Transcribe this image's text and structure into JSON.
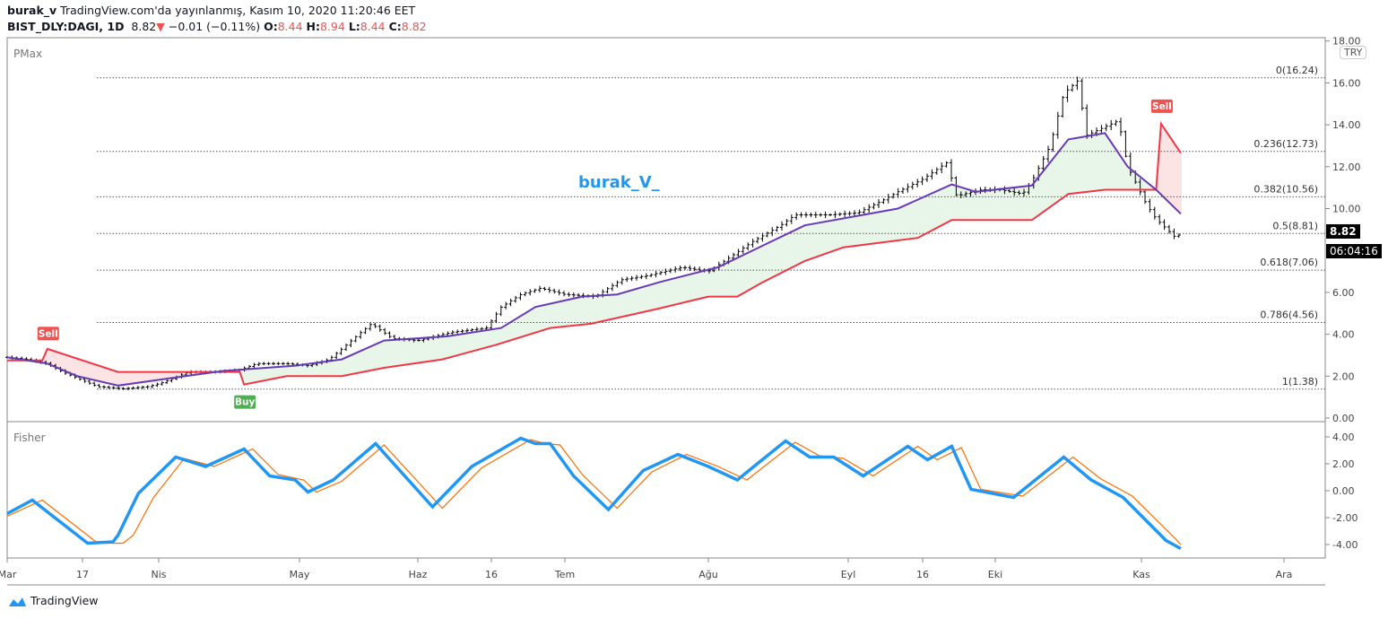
{
  "header": {
    "author": "burak_v",
    "published": "TradingView.com'da yayınlanmış, Kasım 10, 2020 11:20:46 EET",
    "symbol": "BIST_DLY:DAGI, 1D",
    "last": "8.82",
    "change": "−0.01 (−0.11%)",
    "o_label": "O:",
    "o": "8.44",
    "h_label": "H:",
    "h": "8.94",
    "l_label": "L:",
    "l": "8.44",
    "c_label": "C:",
    "c": "8.82"
  },
  "panes": {
    "main_title": "PMax",
    "sub_title": "Fisher",
    "currency": "TRY",
    "price_tag": "8.82",
    "countdown": "06:04:16",
    "watermark": "burak_V_"
  },
  "footer": {
    "logo": "TradingView"
  },
  "colors": {
    "up_fill": "#e8f5e9",
    "down_fill": "#fde4e4",
    "pmax": "#f23645",
    "ma": "#673ab7",
    "fisher": "#2196f3",
    "trigger": "#ff6d00",
    "buy": "#4caf50",
    "sell": "#ef5350"
  },
  "chart_data": [
    {
      "type": "line",
      "title": "PMax",
      "ylim": [
        0,
        18
      ],
      "y_ticks": [
        "18.00",
        "16.00",
        "14.00",
        "12.00",
        "10.00",
        "6.00",
        "4.00",
        "2.00",
        "0.00"
      ],
      "x_ticks": [
        "Mar",
        "17",
        "Nis",
        "May",
        "Haz",
        "16",
        "Tem",
        "Ağu",
        "Eyl",
        "16",
        "Eki",
        "Kas",
        "Ara"
      ],
      "fib_levels": [
        {
          "label": "0(16.24)",
          "value": 16.24
        },
        {
          "label": "0.236(12.73)",
          "value": 12.73
        },
        {
          "label": "0.382(10.56)",
          "value": 10.56
        },
        {
          "label": "0.5(8.81)",
          "value": 8.81
        },
        {
          "label": "0.618(7.06)",
          "value": 7.06
        },
        {
          "label": "0.786(4.56)",
          "value": 4.56
        },
        {
          "label": "1(1.38)",
          "value": 1.38
        }
      ],
      "signals": [
        {
          "label": "Sell",
          "date": "2020-03-10",
          "value": 3.2,
          "type": "sell"
        },
        {
          "label": "Buy",
          "date": "2020-04-21",
          "value": 1.6,
          "type": "buy"
        },
        {
          "label": "Sell",
          "date": "2020-11-06",
          "value": 14.05,
          "type": "sell"
        }
      ],
      "close": [
        [
          "2020-03-02",
          2.9
        ],
        [
          "2020-03-06",
          2.8
        ],
        [
          "2020-03-10",
          2.6
        ],
        [
          "2020-03-13",
          2.2
        ],
        [
          "2020-03-17",
          1.8
        ],
        [
          "2020-03-20",
          1.5
        ],
        [
          "2020-03-25",
          1.4
        ],
        [
          "2020-03-30",
          1.5
        ],
        [
          "2020-04-02",
          1.7
        ],
        [
          "2020-04-08",
          2.2
        ],
        [
          "2020-04-14",
          2.2
        ],
        [
          "2020-04-20",
          2.3
        ],
        [
          "2020-04-24",
          2.6
        ],
        [
          "2020-05-01",
          2.6
        ],
        [
          "2020-05-06",
          2.5
        ],
        [
          "2020-05-11",
          2.8
        ],
        [
          "2020-05-14",
          3.3
        ],
        [
          "2020-05-18",
          4.0
        ],
        [
          "2020-05-21",
          4.5
        ],
        [
          "2020-05-26",
          3.8
        ],
        [
          "2020-06-01",
          3.7
        ],
        [
          "2020-06-08",
          4.1
        ],
        [
          "2020-06-15",
          4.3
        ],
        [
          "2020-06-18",
          5.3
        ],
        [
          "2020-06-22",
          5.9
        ],
        [
          "2020-06-26",
          6.2
        ],
        [
          "2020-07-01",
          5.9
        ],
        [
          "2020-07-08",
          5.8
        ],
        [
          "2020-07-14",
          6.6
        ],
        [
          "2020-07-20",
          6.8
        ],
        [
          "2020-07-28",
          7.2
        ],
        [
          "2020-08-03",
          7.0
        ],
        [
          "2020-08-07",
          7.6
        ],
        [
          "2020-08-12",
          8.4
        ],
        [
          "2020-08-18",
          9.2
        ],
        [
          "2020-08-21",
          9.7
        ],
        [
          "2020-08-28",
          9.7
        ],
        [
          "2020-09-03",
          9.8
        ],
        [
          "2020-09-08",
          10.4
        ],
        [
          "2020-09-11",
          10.8
        ],
        [
          "2020-09-16",
          11.4
        ],
        [
          "2020-09-21",
          12.2
        ],
        [
          "2020-09-23",
          10.6
        ],
        [
          "2020-09-28",
          10.9
        ],
        [
          "2020-10-02",
          10.9
        ],
        [
          "2020-10-07",
          10.7
        ],
        [
          "2020-10-09",
          11.3
        ],
        [
          "2020-10-13",
          13.0
        ],
        [
          "2020-10-16",
          15.5
        ],
        [
          "2020-10-19",
          16.1
        ],
        [
          "2020-10-21",
          13.5
        ],
        [
          "2020-10-26",
          14.0
        ],
        [
          "2020-10-28",
          14.2
        ],
        [
          "2020-10-30",
          12.0
        ],
        [
          "2020-11-03",
          10.2
        ],
        [
          "2020-11-05",
          9.5
        ],
        [
          "2020-11-09",
          8.6
        ],
        [
          "2020-11-10",
          8.82
        ]
      ],
      "ma": [
        [
          "2020-03-02",
          2.9
        ],
        [
          "2020-03-10",
          2.6
        ],
        [
          "2020-03-16",
          2.0
        ],
        [
          "2020-03-24",
          1.55
        ],
        [
          "2020-04-02",
          1.85
        ],
        [
          "2020-04-16",
          2.25
        ],
        [
          "2020-05-03",
          2.5
        ],
        [
          "2020-05-14",
          2.8
        ],
        [
          "2020-05-24",
          3.7
        ],
        [
          "2020-06-07",
          3.9
        ],
        [
          "2020-06-18",
          4.3
        ],
        [
          "2020-06-25",
          5.3
        ],
        [
          "2020-07-05",
          5.8
        ],
        [
          "2020-07-13",
          5.9
        ],
        [
          "2020-07-23",
          6.5
        ],
        [
          "2020-08-05",
          7.2
        ],
        [
          "2020-08-14",
          8.2
        ],
        [
          "2020-08-23",
          9.2
        ],
        [
          "2020-09-04",
          9.7
        ],
        [
          "2020-09-11",
          10.0
        ],
        [
          "2020-09-22",
          11.15
        ],
        [
          "2020-09-27",
          10.8
        ],
        [
          "2020-10-09",
          11.1
        ],
        [
          "2020-10-17",
          13.3
        ],
        [
          "2020-10-25",
          13.6
        ],
        [
          "2020-10-30",
          12.0
        ],
        [
          "2020-11-05",
          10.9
        ],
        [
          "2020-11-10",
          9.75
        ]
      ],
      "pmax": [
        [
          "2020-03-02",
          2.75
        ],
        [
          "2020-03-09",
          2.75
        ],
        [
          "2020-03-10",
          3.3
        ],
        [
          "2020-03-24",
          2.2
        ],
        [
          "2020-04-20",
          2.2
        ],
        [
          "2020-04-21",
          1.6
        ],
        [
          "2020-05-01",
          2.0
        ],
        [
          "2020-05-14",
          2.0
        ],
        [
          "2020-05-24",
          2.4
        ],
        [
          "2020-06-06",
          2.8
        ],
        [
          "2020-06-17",
          3.5
        ],
        [
          "2020-06-28",
          4.3
        ],
        [
          "2020-07-07",
          4.5
        ],
        [
          "2020-07-22",
          5.2
        ],
        [
          "2020-08-03",
          5.8
        ],
        [
          "2020-08-09",
          5.8
        ],
        [
          "2020-08-14",
          6.45
        ],
        [
          "2020-08-23",
          7.5
        ],
        [
          "2020-08-31",
          8.15
        ],
        [
          "2020-09-15",
          8.6
        ],
        [
          "2020-09-22",
          9.45
        ],
        [
          "2020-10-09",
          9.45
        ],
        [
          "2020-10-17",
          10.7
        ],
        [
          "2020-10-25",
          10.9
        ],
        [
          "2020-11-05",
          10.9
        ],
        [
          "2020-11-06",
          14.05
        ],
        [
          "2020-11-10",
          12.65
        ]
      ]
    },
    {
      "type": "line",
      "title": "Fisher",
      "ylim": [
        -5,
        5
      ],
      "y_ticks": [
        "4.00",
        "2.00",
        "0.00",
        "-2.00",
        "-4.00"
      ],
      "fisher": [
        [
          "2020-03-02",
          -1.7
        ],
        [
          "2020-03-07",
          -0.7
        ],
        [
          "2020-03-18",
          -3.9
        ],
        [
          "2020-03-23",
          -3.8
        ],
        [
          "2020-03-24",
          -3.3
        ],
        [
          "2020-03-28",
          -0.2
        ],
        [
          "2020-04-05",
          2.5
        ],
        [
          "2020-04-12",
          1.8
        ],
        [
          "2020-04-21",
          3.1
        ],
        [
          "2020-04-27",
          1.1
        ],
        [
          "2020-05-03",
          0.8
        ],
        [
          "2020-05-06",
          -0.1
        ],
        [
          "2020-05-12",
          0.8
        ],
        [
          "2020-05-22",
          3.5
        ],
        [
          "2020-06-04",
          -1.2
        ],
        [
          "2020-06-12",
          1.8
        ],
        [
          "2020-06-22",
          3.9
        ],
        [
          "2020-06-25",
          3.5
        ],
        [
          "2020-06-28",
          3.5
        ],
        [
          "2020-07-03",
          1.1
        ],
        [
          "2020-07-11",
          -1.4
        ],
        [
          "2020-07-19",
          1.5
        ],
        [
          "2020-07-27",
          2.7
        ],
        [
          "2020-08-03",
          1.8
        ],
        [
          "2020-08-09",
          0.8
        ],
        [
          "2020-08-19",
          3.7
        ],
        [
          "2020-08-24",
          2.5
        ],
        [
          "2020-08-29",
          2.5
        ],
        [
          "2020-09-04",
          1.1
        ],
        [
          "2020-09-13",
          3.3
        ],
        [
          "2020-09-17",
          2.3
        ],
        [
          "2020-09-22",
          3.3
        ],
        [
          "2020-09-26",
          0.1
        ],
        [
          "2020-10-05",
          -0.5
        ],
        [
          "2020-10-16",
          2.5
        ],
        [
          "2020-10-22",
          0.8
        ],
        [
          "2020-10-29",
          -0.5
        ],
        [
          "2020-11-07",
          -3.7
        ],
        [
          "2020-11-10",
          -4.3
        ]
      ],
      "trigger": [
        [
          "2020-03-02",
          -1.9
        ],
        [
          "2020-03-09",
          -0.7
        ],
        [
          "2020-03-20",
          -3.9
        ],
        [
          "2020-03-25",
          -3.9
        ],
        [
          "2020-03-27",
          -3.3
        ],
        [
          "2020-03-31",
          -0.5
        ],
        [
          "2020-04-07",
          2.4
        ],
        [
          "2020-04-14",
          1.8
        ],
        [
          "2020-04-23",
          3.1
        ],
        [
          "2020-04-29",
          1.2
        ],
        [
          "2020-05-05",
          0.8
        ],
        [
          "2020-05-08",
          -0.1
        ],
        [
          "2020-05-14",
          0.7
        ],
        [
          "2020-05-24",
          3.4
        ],
        [
          "2020-06-06",
          -1.3
        ],
        [
          "2020-06-14",
          1.7
        ],
        [
          "2020-06-24",
          3.8
        ],
        [
          "2020-06-27",
          3.5
        ],
        [
          "2020-06-30",
          3.4
        ],
        [
          "2020-07-05",
          1.2
        ],
        [
          "2020-07-13",
          -1.3
        ],
        [
          "2020-07-21",
          1.4
        ],
        [
          "2020-07-29",
          2.7
        ],
        [
          "2020-08-05",
          1.8
        ],
        [
          "2020-08-11",
          0.8
        ],
        [
          "2020-08-21",
          3.6
        ],
        [
          "2020-08-26",
          2.6
        ],
        [
          "2020-08-31",
          2.4
        ],
        [
          "2020-09-06",
          1.1
        ],
        [
          "2020-09-15",
          3.3
        ],
        [
          "2020-09-19",
          2.3
        ],
        [
          "2020-09-24",
          3.2
        ],
        [
          "2020-09-28",
          0.1
        ],
        [
          "2020-10-07",
          -0.4
        ],
        [
          "2020-10-18",
          2.5
        ],
        [
          "2020-10-24",
          0.9
        ],
        [
          "2020-10-31",
          -0.4
        ],
        [
          "2020-11-09",
          -3.6
        ],
        [
          "2020-11-10",
          -4.0
        ]
      ]
    }
  ]
}
